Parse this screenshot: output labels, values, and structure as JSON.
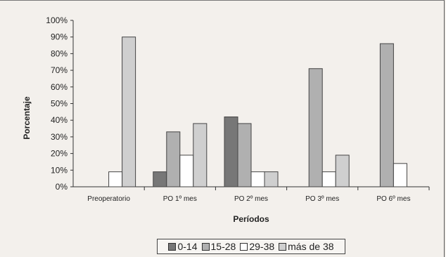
{
  "chart_data": {
    "type": "bar",
    "title": "",
    "xlabel": "Períodos",
    "ylabel": "Porcentaje",
    "ylim": [
      0,
      100
    ],
    "yticks": [
      "0%",
      "10%",
      "20%",
      "30%",
      "40%",
      "50%",
      "60%",
      "70%",
      "80%",
      "90%",
      "100%"
    ],
    "categories": [
      "Preoperatorio",
      "PO 1º mes",
      "PO 2º mes",
      "PO 3º mes",
      "PO 6º mes"
    ],
    "series": [
      {
        "name": "0-14",
        "color": "#777777",
        "values": [
          0,
          9,
          42,
          0,
          0
        ]
      },
      {
        "name": "15-28",
        "color": "#b0b0b0",
        "values": [
          0,
          33,
          38,
          71,
          86
        ]
      },
      {
        "name": "29-38",
        "color": "#ffffff",
        "values": [
          9,
          19,
          9,
          9,
          14
        ]
      },
      {
        "name": "más de 38",
        "color": "#cfcfcf",
        "values": [
          90,
          38,
          9,
          19,
          0
        ]
      }
    ],
    "grid": false,
    "legend_position": "bottom"
  }
}
